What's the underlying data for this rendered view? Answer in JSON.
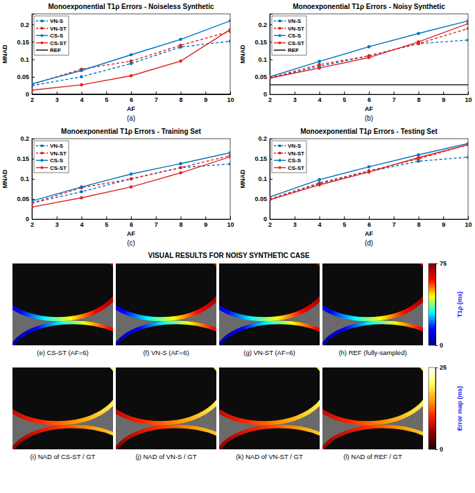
{
  "chart_data": [
    {
      "type": "line",
      "title": "Monoexponential T1ρ Errors - Noiseless Synthetic",
      "caption": "(a)",
      "x_label": "AF",
      "y_label": "MNAD",
      "x": [
        2,
        4,
        6,
        8,
        10
      ],
      "xlim": [
        2,
        10
      ],
      "xticks": [
        2,
        3,
        4,
        5,
        6,
        7,
        8,
        9,
        10
      ],
      "ylim": [
        0,
        0.23
      ],
      "yticks": [
        0,
        0.05,
        0.1,
        0.15,
        0.2
      ],
      "legend": "northwest",
      "series": [
        {
          "name": "VN-S",
          "color": "#0072bd",
          "line_style": "dashed",
          "marker": "circle",
          "values": [
            0.025,
            0.05,
            0.088,
            0.135,
            0.152
          ]
        },
        {
          "name": "VN-ST",
          "color": "#e02020",
          "line_style": "dashed",
          "marker": "circle",
          "values": [
            0.028,
            0.072,
            0.095,
            0.14,
            0.18
          ]
        },
        {
          "name": "CS-S",
          "color": "#0072bd",
          "line_style": "solid",
          "marker": "circle",
          "values": [
            0.03,
            0.068,
            0.113,
            0.157,
            0.21
          ]
        },
        {
          "name": "CS-ST",
          "color": "#e02020",
          "line_style": "solid",
          "marker": "circle",
          "values": [
            0.012,
            0.027,
            0.053,
            0.095,
            0.185
          ]
        },
        {
          "name": "REF",
          "color": "#000000",
          "line_style": "solid",
          "marker": "none",
          "values": [
            0,
            0,
            0,
            0,
            0
          ]
        }
      ]
    },
    {
      "type": "line",
      "title": "Monoexponential T1ρ Errors - Noisy Synthetic",
      "caption": "(b)",
      "x_label": "AF",
      "y_label": "MNAD",
      "x": [
        2,
        4,
        6,
        8,
        10
      ],
      "xlim": [
        2,
        10
      ],
      "xticks": [
        2,
        3,
        4,
        5,
        6,
        7,
        8,
        9,
        10
      ],
      "ylim": [
        0,
        0.23
      ],
      "yticks": [
        0,
        0.05,
        0.1,
        0.15,
        0.2
      ],
      "legend": "northwest",
      "series": [
        {
          "name": "VN-S",
          "color": "#0072bd",
          "line_style": "dashed",
          "marker": "circle",
          "values": [
            0.046,
            0.08,
            0.11,
            0.145,
            0.155
          ]
        },
        {
          "name": "VN-ST",
          "color": "#e02020",
          "line_style": "dashed",
          "marker": "circle",
          "values": [
            0.047,
            0.085,
            0.11,
            0.145,
            0.188
          ]
        },
        {
          "name": "CS-S",
          "color": "#0072bd",
          "line_style": "solid",
          "marker": "circle",
          "values": [
            0.05,
            0.094,
            0.136,
            0.174,
            0.21
          ]
        },
        {
          "name": "CS-ST",
          "color": "#e02020",
          "line_style": "solid",
          "marker": "circle",
          "values": [
            0.046,
            0.075,
            0.105,
            0.15,
            0.202
          ]
        },
        {
          "name": "REF",
          "color": "#000000",
          "line_style": "solid",
          "marker": "none",
          "values": [
            0.027,
            0.027,
            0.027,
            0.027,
            0.027
          ]
        }
      ]
    },
    {
      "type": "line",
      "title": "Monoexponential T1ρ Errors - Training Set",
      "caption": "(c)",
      "x_label": "AF",
      "y_label": "MNAD",
      "x": [
        2,
        4,
        6,
        8,
        10
      ],
      "xlim": [
        2,
        10
      ],
      "xticks": [
        2,
        3,
        4,
        5,
        6,
        7,
        8,
        9,
        10
      ],
      "ylim": [
        0,
        0.2
      ],
      "yticks": [
        0,
        0.05,
        0.1,
        0.15,
        0.2
      ],
      "legend": "northwest",
      "series": [
        {
          "name": "VN-S",
          "color": "#0072bd",
          "line_style": "dashed",
          "marker": "circle",
          "values": [
            0.04,
            0.068,
            0.1,
            0.128,
            0.137
          ]
        },
        {
          "name": "VN-ST",
          "color": "#e02020",
          "line_style": "dashed",
          "marker": "circle",
          "values": [
            0.04,
            0.078,
            0.1,
            0.128,
            0.158
          ]
        },
        {
          "name": "CS-S",
          "color": "#0072bd",
          "line_style": "solid",
          "marker": "circle",
          "values": [
            0.045,
            0.08,
            0.112,
            0.138,
            0.165
          ]
        },
        {
          "name": "CS-ST",
          "color": "#e02020",
          "line_style": "solid",
          "marker": "circle",
          "values": [
            0.03,
            0.053,
            0.08,
            0.115,
            0.155
          ]
        }
      ]
    },
    {
      "type": "line",
      "title": "Monoexponential T1ρ Errors - Testing Set",
      "caption": "(d)",
      "x_label": "AF",
      "y_label": "MNAD",
      "x": [
        2,
        4,
        6,
        8,
        10
      ],
      "xlim": [
        2,
        10
      ],
      "xticks": [
        2,
        3,
        4,
        5,
        6,
        7,
        8,
        9,
        10
      ],
      "ylim": [
        0,
        0.2
      ],
      "yticks": [
        0,
        0.05,
        0.1,
        0.15,
        0.2
      ],
      "legend": "northwest",
      "series": [
        {
          "name": "VN-S",
          "color": "#0072bd",
          "line_style": "dashed",
          "marker": "circle",
          "values": [
            0.048,
            0.088,
            0.118,
            0.144,
            0.154
          ]
        },
        {
          "name": "VN-ST",
          "color": "#e02020",
          "line_style": "dashed",
          "marker": "circle",
          "values": [
            0.05,
            0.09,
            0.12,
            0.15,
            0.185
          ]
        },
        {
          "name": "CS-S",
          "color": "#0072bd",
          "line_style": "solid",
          "marker": "circle",
          "values": [
            0.055,
            0.098,
            0.13,
            0.16,
            0.188
          ]
        },
        {
          "name": "CS-ST",
          "color": "#e02020",
          "line_style": "solid",
          "marker": "circle",
          "values": [
            0.048,
            0.085,
            0.117,
            0.153,
            0.185
          ]
        }
      ]
    }
  ],
  "visual_results": {
    "title": "VISUAL RESULTS FOR NOISY SYNTHETIC CASE",
    "rows": [
      {
        "panels": [
          "(e) CS-ST (AF=6)",
          "(f) VN-S (AF=6)",
          "(g) VN-ST (AF=6)",
          "(h) REF (fully-sampled)"
        ],
        "colorbar": {
          "label": "T1ρ (ms)",
          "range": [
            0,
            75
          ],
          "ticks": [
            0,
            75
          ]
        }
      },
      {
        "panels": [
          "(i) NAD of CS-ST / GT",
          "(j) NAD of VN-S / GT",
          "(k) NAD of VN-ST / GT",
          "(l) NAD of REF / GT"
        ],
        "colorbar": {
          "label": "Error map (ms)",
          "range": [
            0,
            25
          ],
          "ticks": [
            0,
            25
          ]
        }
      }
    ]
  }
}
